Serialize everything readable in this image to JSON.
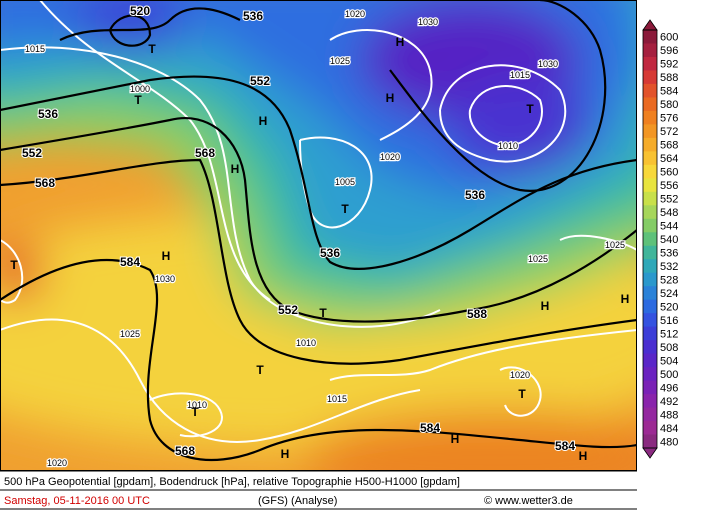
{
  "map": {
    "labels": [
      "520",
      "536",
      "552",
      "568",
      "552",
      "568",
      "536",
      "536",
      "536",
      "584",
      "552",
      "588",
      "584",
      "584",
      "568",
      "1015",
      "1025",
      "1030",
      "1010",
      "1020",
      "1005",
      "1025",
      "1025",
      "1030",
      "1025",
      "1010",
      "1015",
      "1020",
      "1010",
      "1020",
      "1000",
      "1020",
      "1015",
      "1030",
      "H",
      "H",
      "H",
      "H",
      "H",
      "T",
      "T",
      "T",
      "T",
      "T",
      "T",
      "T",
      "T",
      "H",
      "H",
      "H",
      "H",
      "H",
      "T"
    ],
    "colorbar": {
      "labels": [
        600,
        596,
        592,
        588,
        584,
        580,
        576,
        572,
        568,
        564,
        560,
        556,
        552,
        548,
        544,
        540,
        536,
        532,
        528,
        524,
        520,
        516,
        512,
        508,
        504,
        500,
        496,
        492,
        488,
        484,
        480
      ],
      "colors": [
        "#8b1a3a",
        "#a5203f",
        "#c02840",
        "#d63a35",
        "#e2532b",
        "#ea6a22",
        "#ef8020",
        "#f29624",
        "#f5ac2a",
        "#f8c232",
        "#f7d83a",
        "#e8e43f",
        "#c8e04a",
        "#a6d65a",
        "#84cc66",
        "#5ec17a",
        "#40b59a",
        "#2ea8b8",
        "#2a98cc",
        "#2a82d8",
        "#2c6ae0",
        "#3452e0",
        "#3c3ed8",
        "#4a2ed0",
        "#5a26c8",
        "#6a22c0",
        "#7a22b6",
        "#8a24ac",
        "#9428a0",
        "#9c2a94",
        "#8a2a80"
      ]
    }
  },
  "footer": {
    "description": "500 hPa Geopotential [gpdam], Bodendruck [hPa], relative Topographie H500-H1000 [gpdam]",
    "date": "Samstag, 05-11-2016  00 UTC",
    "model": "(GFS)  (Analyse)",
    "credit": "© www.wetter3.de"
  }
}
